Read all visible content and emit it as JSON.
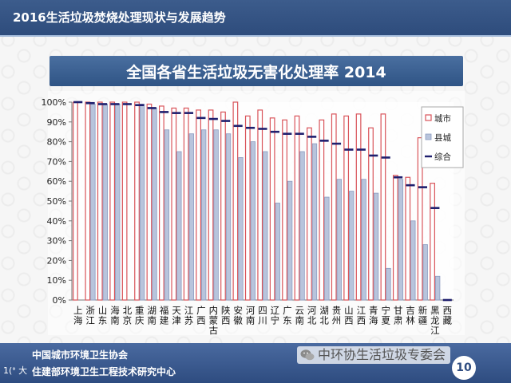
{
  "header": {
    "title": "2016生活垃圾焚烧处理现状与发展趋势"
  },
  "footer": {
    "org1": "中国城市环境卫生协会",
    "org2": "住建部环境卫生工程技术研究中心",
    "corner_text": "1(ᐤ 大",
    "watermark": "中环协生活垃圾专委会",
    "page": "10"
  },
  "colors": {
    "city": "#d9545a",
    "county": "#b8c4dc",
    "overall": "#1f1f6e"
  },
  "chart_data": {
    "type": "bar",
    "title": "全国各省生活垃圾无害化处理率 2014",
    "ylim": [
      0,
      100
    ],
    "yticks": [
      "0%",
      "10%",
      "20%",
      "30%",
      "40%",
      "50%",
      "60%",
      "70%",
      "80%",
      "90%",
      "100%"
    ],
    "legend_position": "top-right",
    "categories": [
      "上海",
      "浙江",
      "山东",
      "海南",
      "北京",
      "重庆",
      "湖南",
      "福建",
      "天津",
      "江苏",
      "广西",
      "内蒙古",
      "陕西",
      "安徽",
      "河南",
      "四川",
      "辽宁",
      "广东",
      "云南",
      "河北",
      "湖北",
      "贵州",
      "山西",
      "江西",
      "青海",
      "宁夏",
      "甘肃",
      "吉林",
      "新疆",
      "黑龙江",
      "西藏"
    ],
    "series": [
      {
        "name": "城市",
        "values": [
          100,
          100,
          100,
          100,
          100,
          100,
          99,
          98,
          97,
          97,
          96,
          96,
          95,
          100,
          93,
          96,
          92,
          91,
          93,
          87,
          91,
          94,
          93,
          94,
          87,
          94,
          63,
          62,
          82,
          59,
          0
        ]
      },
      {
        "name": "县城",
        "values": [
          0,
          99,
          99,
          99,
          0,
          99,
          97,
          86,
          75,
          84,
          86,
          86,
          84,
          72,
          80,
          75,
          49,
          60,
          75,
          79,
          52,
          61,
          55,
          61,
          54,
          16,
          61,
          40,
          28,
          12,
          0
        ]
      },
      {
        "name": "综合",
        "values": [
          100,
          99.5,
          99,
          99,
          99,
          98.5,
          97,
          95,
          94.5,
          94.5,
          92,
          91.5,
          90.5,
          88,
          87,
          86.5,
          85,
          84,
          84,
          82.5,
          80.5,
          79,
          76,
          76,
          73,
          72,
          62,
          58,
          57,
          46.5,
          0
        ]
      }
    ]
  }
}
